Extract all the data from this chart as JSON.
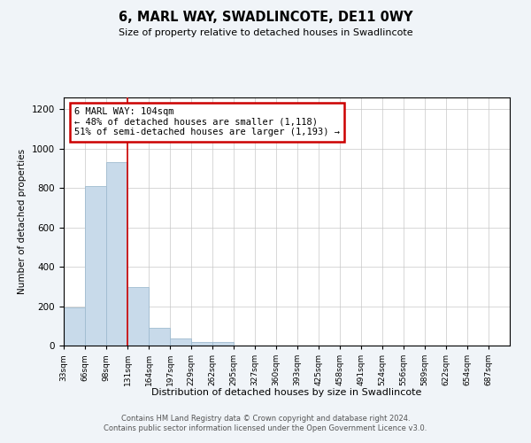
{
  "title": "6, MARL WAY, SWADLINCOTE, DE11 0WY",
  "subtitle": "Size of property relative to detached houses in Swadlincote",
  "xlabel": "Distribution of detached houses by size in Swadlincote",
  "ylabel": "Number of detached properties",
  "bar_color": "#c8daea",
  "bar_edge_color": "#a0bcd0",
  "bin_labels": [
    "33sqm",
    "66sqm",
    "98sqm",
    "131sqm",
    "164sqm",
    "197sqm",
    "229sqm",
    "262sqm",
    "295sqm",
    "327sqm",
    "360sqm",
    "393sqm",
    "425sqm",
    "458sqm",
    "491sqm",
    "524sqm",
    "556sqm",
    "589sqm",
    "622sqm",
    "654sqm",
    "687sqm"
  ],
  "bar_values": [
    193,
    810,
    930,
    295,
    90,
    38,
    20,
    16,
    0,
    0,
    0,
    0,
    0,
    0,
    0,
    0,
    0,
    0,
    0,
    0,
    0
  ],
  "ylim_max": 1260,
  "yticks": [
    0,
    200,
    400,
    600,
    800,
    1000,
    1200
  ],
  "property_line_x": 3,
  "property_line_color": "#cc0000",
  "annotation_line1": "6 MARL WAY: 104sqm",
  "annotation_line2": "← 48% of detached houses are smaller (1,118)",
  "annotation_line3": "51% of semi-detached houses are larger (1,193) →",
  "annotation_bg": "#ffffff",
  "annotation_edge": "#cc0000",
  "footer_line1": "Contains HM Land Registry data © Crown copyright and database right 2024.",
  "footer_line2": "Contains public sector information licensed under the Open Government Licence v3.0.",
  "bg_color": "#f0f4f8",
  "plot_bg_color": "#ffffff",
  "grid_color": "#c8c8c8"
}
